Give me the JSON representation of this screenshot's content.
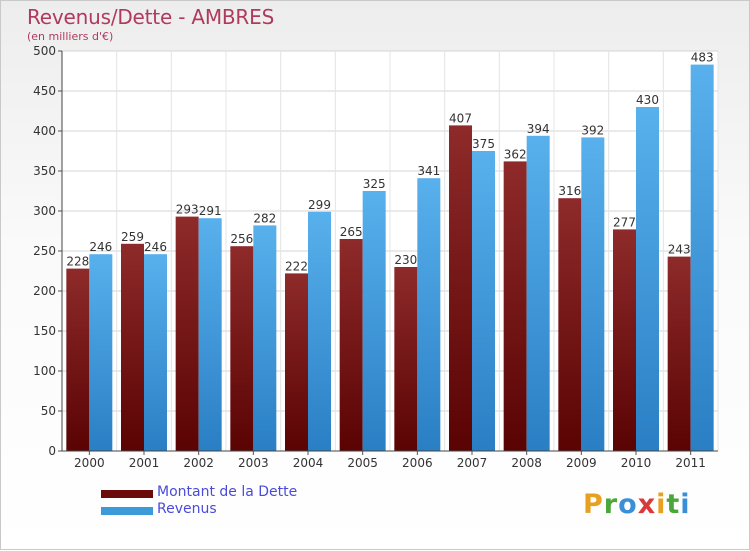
{
  "title": "Revenus/Dette - AMBRES",
  "subtitle": "(en milliers d'€)",
  "colors": {
    "debt": "#7a1414",
    "revenue": "#3d9ad8",
    "title": "#b03a5e",
    "legend_text": "#4a4adb"
  },
  "legend": [
    {
      "label": "Montant de la Dette",
      "color": "#6a0a0a"
    },
    {
      "label": "Revenus",
      "color": "#3d9ad8"
    }
  ],
  "logo": {
    "text": "Proxiti",
    "letters": [
      {
        "ch": "P",
        "color": "#e8a020"
      },
      {
        "ch": "r",
        "color": "#4aa83a"
      },
      {
        "ch": "o",
        "color": "#3a8fd8"
      },
      {
        "ch": "x",
        "color": "#d83a3a"
      },
      {
        "ch": "i",
        "color": "#e8a020"
      },
      {
        "ch": "t",
        "color": "#4aa83a"
      },
      {
        "ch": "i",
        "color": "#3a8fd8"
      }
    ]
  },
  "chart_data": {
    "type": "bar",
    "title": "Revenus/Dette - AMBRES",
    "subtitle": "(en milliers d'€)",
    "categories": [
      "2000",
      "2001",
      "2002",
      "2003",
      "2004",
      "2005",
      "2006",
      "2007",
      "2008",
      "2009",
      "2010",
      "2011"
    ],
    "series": [
      {
        "name": "Montant de la Dette",
        "values": [
          228,
          259,
          293,
          256,
          222,
          265,
          230,
          407,
          362,
          316,
          277,
          243
        ]
      },
      {
        "name": "Revenus",
        "values": [
          246,
          246,
          291,
          282,
          299,
          325,
          341,
          375,
          394,
          392,
          430,
          483
        ]
      }
    ],
    "ylim": [
      0,
      500
    ],
    "yticks": [
      0,
      50,
      100,
      150,
      200,
      250,
      300,
      350,
      400,
      450,
      500
    ],
    "grid": true,
    "legend_position": "bottom-left"
  }
}
